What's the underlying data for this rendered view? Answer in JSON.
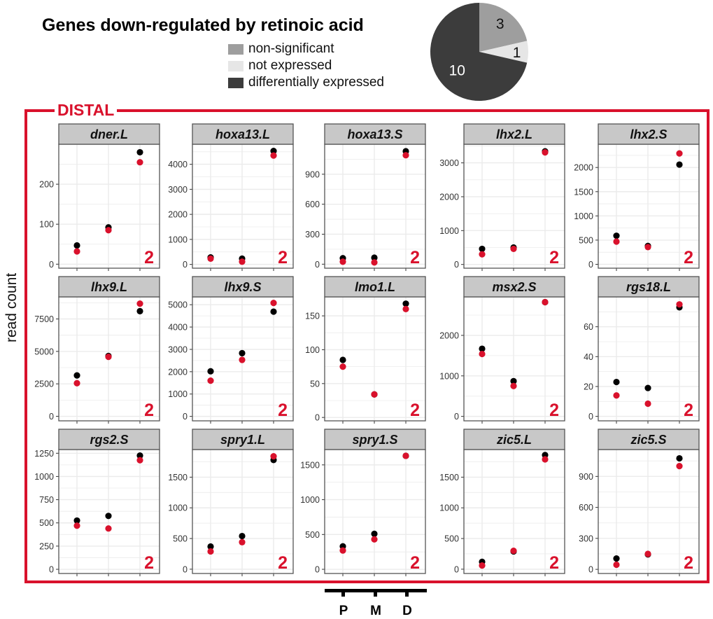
{
  "title": "Genes down-regulated by retinoic acid",
  "legend": [
    {
      "label": "non-significant",
      "color": "#9e9e9e"
    },
    {
      "label": "not expressed",
      "color": "#e6e6e6"
    },
    {
      "label": "differentially expressed",
      "color": "#3c3c3c"
    }
  ],
  "section_label": "DISTAL",
  "y_axis_label": "read count",
  "axis_key": {
    "labels": [
      "P",
      "M",
      "D"
    ]
  },
  "colors": {
    "accent_red": "#d9112c",
    "series_black": "#000000",
    "strip_bg": "#c8c8c8"
  },
  "chart_data": [
    {
      "type": "pie",
      "title": "",
      "slices": [
        {
          "label": "non-significant",
          "value": 3,
          "color": "#9e9e9e"
        },
        {
          "label": "not expressed",
          "value": 1,
          "color": "#e6e6e6"
        },
        {
          "label": "differentially expressed",
          "value": 10,
          "color": "#3c3c3c"
        }
      ]
    },
    {
      "type": "scatter",
      "title": "read count per gene (facets)",
      "ylabel": "read count",
      "x_categories": [
        "P",
        "M",
        "D"
      ],
      "series_names": [
        "black",
        "red"
      ],
      "panels": [
        {
          "gene": "dner.L",
          "ylim": [
            -10,
            300
          ],
          "yticks": [
            0,
            100,
            200
          ],
          "black": [
            47,
            92,
            280
          ],
          "red": [
            32,
            85,
            255
          ],
          "badge": "2"
        },
        {
          "gene": "hoxa13.L",
          "ylim": [
            -150,
            4800
          ],
          "yticks": [
            0,
            1000,
            2000,
            3000,
            4000
          ],
          "black": [
            280,
            230,
            4530
          ],
          "red": [
            230,
            110,
            4350
          ],
          "badge": "2"
        },
        {
          "gene": "hoxa13.S",
          "ylim": [
            -40,
            1200
          ],
          "yticks": [
            0,
            300,
            600,
            900
          ],
          "black": [
            60,
            65,
            1130
          ],
          "red": [
            25,
            18,
            1090
          ],
          "badge": "2"
        },
        {
          "gene": "lhx2.L",
          "ylim": [
            -110,
            3550
          ],
          "yticks": [
            0,
            1000,
            2000,
            3000
          ],
          "black": [
            460,
            500,
            3340
          ],
          "red": [
            300,
            460,
            3310
          ],
          "badge": "2"
        },
        {
          "gene": "lhx2.S",
          "ylim": [
            -80,
            2480
          ],
          "yticks": [
            0,
            500,
            1000,
            1500,
            2000
          ],
          "black": [
            590,
            380,
            2060
          ],
          "red": [
            470,
            355,
            2290
          ],
          "badge": "2"
        },
        {
          "gene": "lhx9.L",
          "ylim": [
            -350,
            9200
          ],
          "yticks": [
            0,
            2500,
            5000,
            7500
          ],
          "black": [
            3150,
            4650,
            8100
          ],
          "red": [
            2550,
            4580,
            8680
          ],
          "badge": "2"
        },
        {
          "gene": "lhx9.S",
          "ylim": [
            -200,
            5350
          ],
          "yticks": [
            0,
            1000,
            2000,
            3000,
            4000,
            5000
          ],
          "black": [
            2020,
            2830,
            4690
          ],
          "red": [
            1600,
            2530,
            5080
          ],
          "badge": "2"
        },
        {
          "gene": "lmo1.L",
          "ylim": [
            -5,
            178
          ],
          "yticks": [
            0,
            50,
            100,
            150
          ],
          "black": [
            85,
            34,
            168
          ],
          "red": [
            75,
            34,
            160
          ],
          "badge": "2"
        },
        {
          "gene": "msx2.S",
          "ylim": [
            -110,
            2950
          ],
          "yticks": [
            0,
            1000,
            2000
          ],
          "black": [
            1670,
            870,
            2820
          ],
          "red": [
            1540,
            750,
            2820
          ],
          "badge": "2"
        },
        {
          "gene": "rgs18.L",
          "ylim": [
            -3,
            80
          ],
          "yticks": [
            0,
            20,
            40,
            60
          ],
          "black": [
            23,
            19,
            73
          ],
          "red": [
            14,
            8.5,
            75
          ],
          "badge": "2"
        },
        {
          "gene": "rgs2.S",
          "ylim": [
            -45,
            1290
          ],
          "yticks": [
            0,
            250,
            500,
            750,
            1000,
            1250
          ],
          "black": [
            525,
            575,
            1225
          ],
          "red": [
            470,
            440,
            1175
          ],
          "badge": "2"
        },
        {
          "gene": "spry1.L",
          "ylim": [
            -70,
            1950
          ],
          "yticks": [
            0,
            500,
            1000,
            1500
          ],
          "black": [
            370,
            540,
            1780
          ],
          "red": [
            290,
            440,
            1840
          ],
          "badge": "2"
        },
        {
          "gene": "spry1.S",
          "ylim": [
            -60,
            1720
          ],
          "yticks": [
            0,
            500,
            1000,
            1500
          ],
          "black": [
            330,
            510,
            1630
          ],
          "red": [
            270,
            430,
            1630
          ],
          "badge": "2"
        },
        {
          "gene": "zic5.L",
          "ylim": [
            -70,
            1950
          ],
          "yticks": [
            0,
            500,
            1000,
            1500
          ],
          "black": [
            120,
            290,
            1860
          ],
          "red": [
            60,
            300,
            1790
          ],
          "badge": "2"
        },
        {
          "gene": "zic5.S",
          "ylim": [
            -40,
            1160
          ],
          "yticks": [
            0,
            300,
            600,
            900
          ],
          "black": [
            105,
            145,
            1075
          ],
          "red": [
            45,
            150,
            1000
          ],
          "badge": "2"
        }
      ]
    }
  ]
}
